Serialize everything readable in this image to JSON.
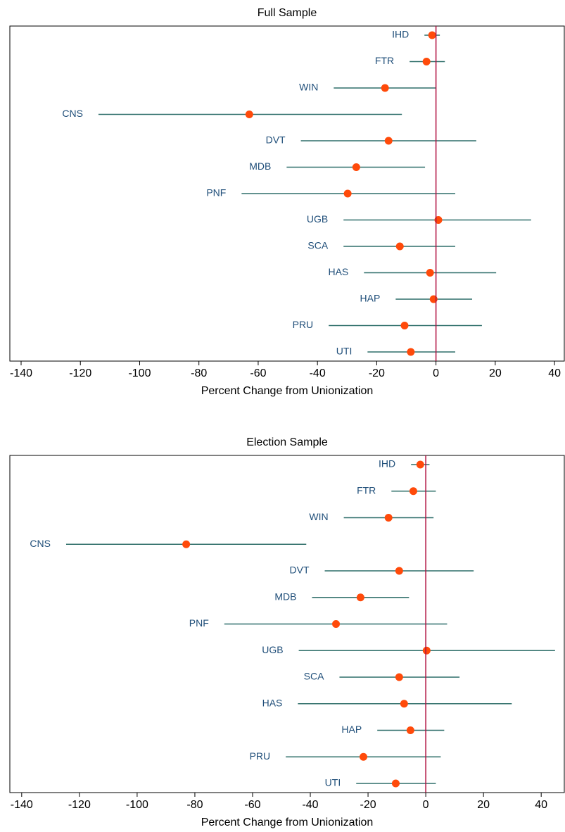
{
  "chart_data": [
    {
      "type": "dot-ci",
      "title": "Full Sample",
      "xlabel": "Percent Change from Unionization",
      "categories": [
        "IHD",
        "FTR",
        "WIN",
        "CNS",
        "DVT",
        "MDB",
        "PNF",
        "UGB",
        "SCA",
        "HAS",
        "HAP",
        "PRU",
        "UTI"
      ],
      "values": [
        -1.3,
        -3.2,
        -17.2,
        -63.0,
        -16.0,
        -26.9,
        -29.8,
        0.8,
        -12.2,
        -2.0,
        -0.8,
        -10.6,
        -8.5
      ],
      "lower": [
        -3.9,
        -8.9,
        -34.5,
        -113.9,
        -45.6,
        -50.4,
        -65.6,
        -31.2,
        -31.2,
        -24.3,
        -13.6,
        -36.2,
        -23.1
      ],
      "upper": [
        1.3,
        3.0,
        -0.1,
        -11.5,
        13.6,
        -3.7,
        6.5,
        32.1,
        6.5,
        20.3,
        12.2,
        15.5,
        6.5
      ],
      "color": "#ff4a0a",
      "ci_color": "#2f6f6a",
      "ref_line": 0,
      "ref_line_color": "#b01040",
      "xlim": [
        -143.8,
        43.3
      ],
      "xticks": [
        -140,
        -120,
        -100,
        -80,
        -60,
        -40,
        -20,
        0,
        20,
        40
      ]
    },
    {
      "type": "dot-ci",
      "title": "Election Sample",
      "xlabel": "Percent Change from Unionization",
      "categories": [
        "IHD",
        "FTR",
        "WIN",
        "CNS",
        "DVT",
        "MDB",
        "PNF",
        "UGB",
        "SCA",
        "HAS",
        "HAP",
        "PRU",
        "UTI"
      ],
      "values": [
        -1.9,
        -4.3,
        -12.9,
        -83.0,
        -9.2,
        -22.6,
        -31.1,
        0.3,
        -9.2,
        -7.5,
        -5.3,
        -21.6,
        -10.4
      ],
      "lower": [
        -5.1,
        -11.9,
        -28.4,
        -124.6,
        -35.0,
        -39.4,
        -69.8,
        -44.0,
        -29.9,
        -44.3,
        -16.8,
        -48.5,
        -24.1
      ],
      "upper": [
        1.3,
        3.5,
        2.7,
        -41.4,
        16.6,
        -5.8,
        7.4,
        44.8,
        11.7,
        29.8,
        6.4,
        5.2,
        3.5
      ],
      "color": "#ff4a0a",
      "ci_color": "#2f6f6a",
      "ref_line": 0,
      "ref_line_color": "#b01040",
      "xlim": [
        -144.1,
        48.0
      ],
      "xticks": [
        -140,
        -120,
        -100,
        -80,
        -60,
        -40,
        -20,
        0,
        20,
        40
      ]
    }
  ]
}
